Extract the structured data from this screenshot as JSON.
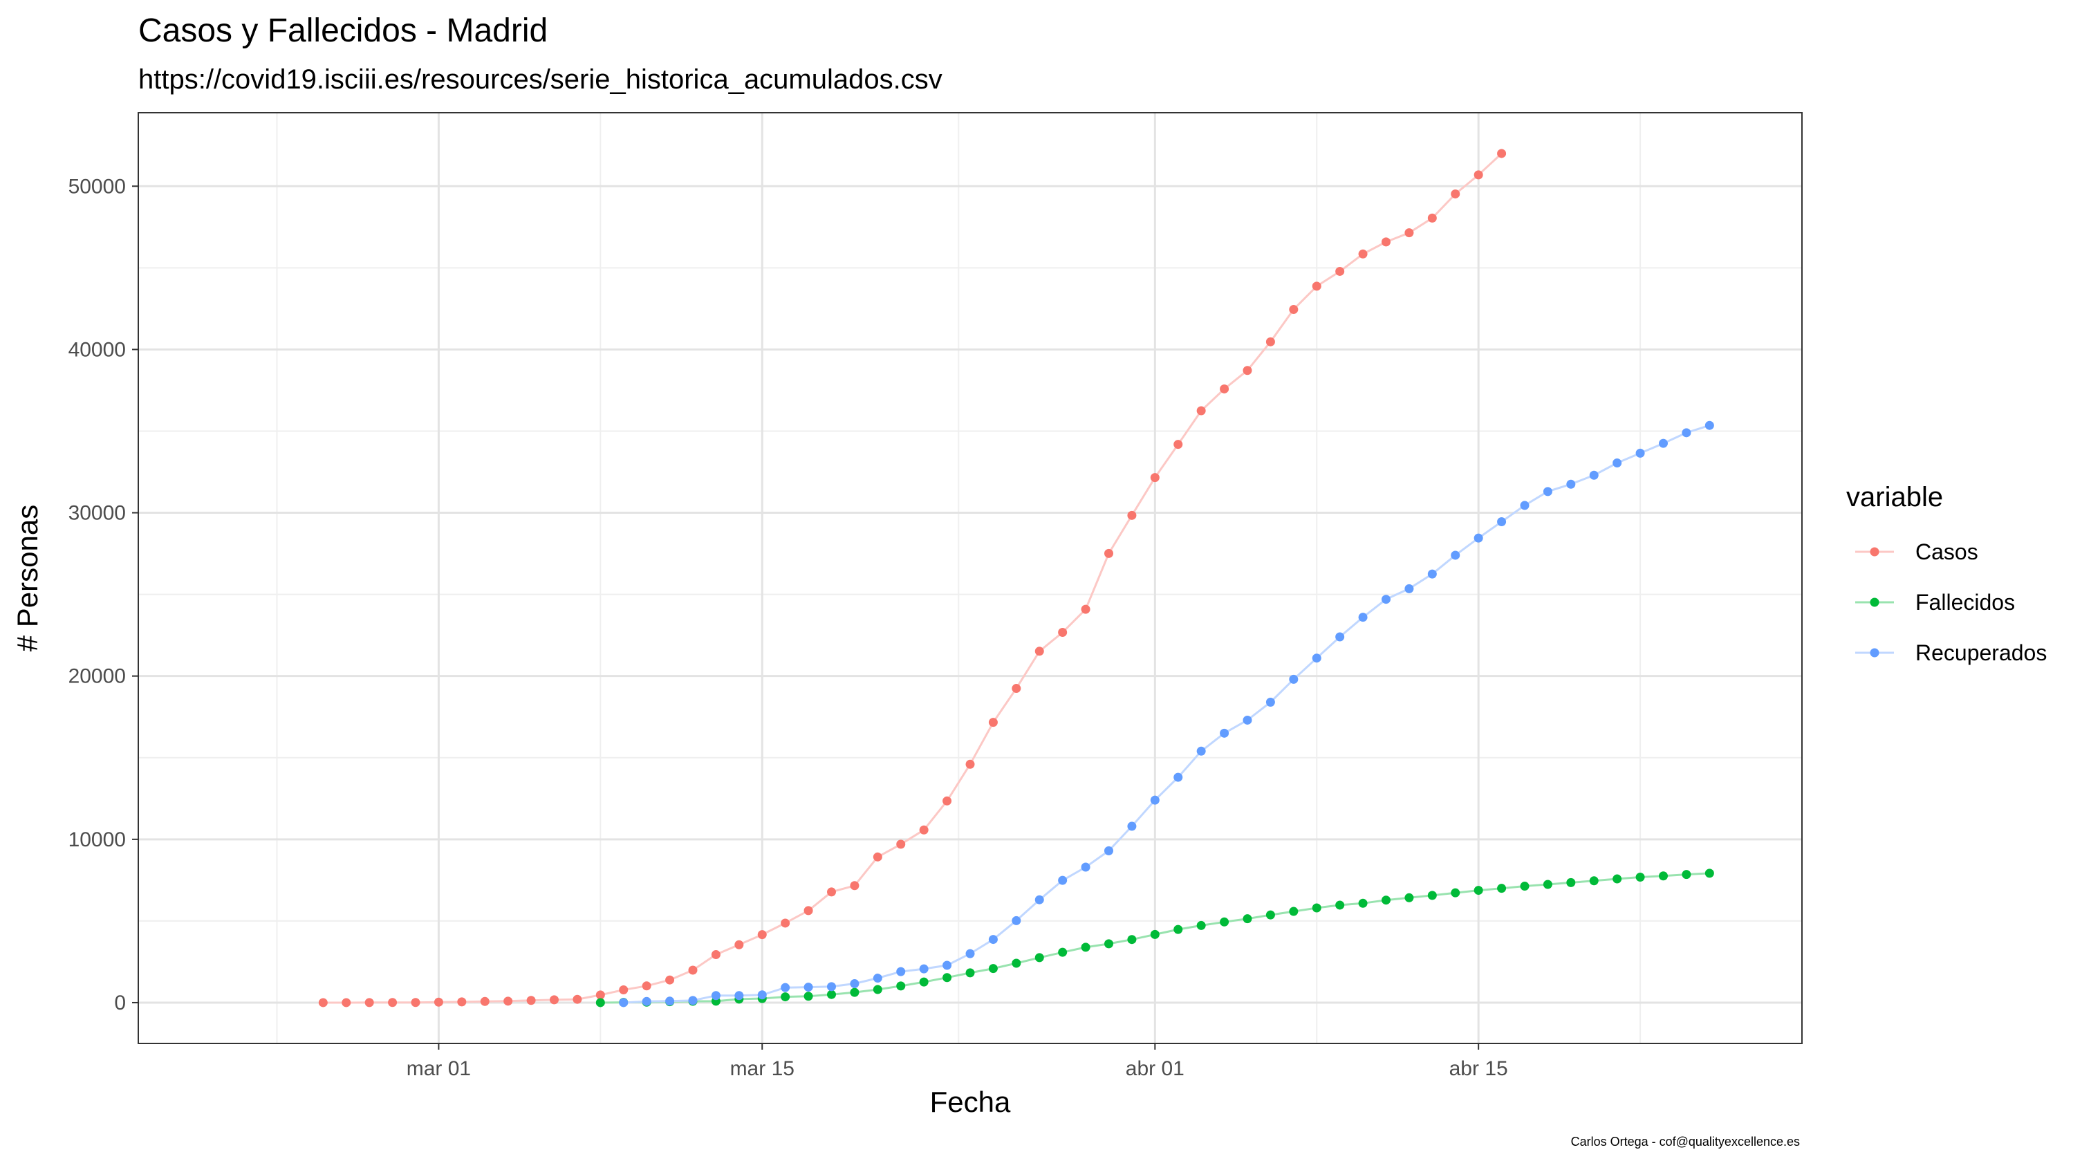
{
  "chart_data": {
    "type": "line",
    "title": "Casos y Fallecidos - Madrid",
    "subtitle": "https://covid19.isciii.es/resources/serie_historica_acumulados.csv",
    "xlabel": "Fecha",
    "ylabel": "# Personas",
    "caption": "Carlos Ortega - cof@qualityexcellence.es",
    "legend_title": "variable",
    "legend_position": "right",
    "grid": true,
    "xlim": [
      "2020-02-17",
      "2020-04-29"
    ],
    "ylim": [
      -2500,
      54500
    ],
    "x_ticks": [
      {
        "date": "2020-03-01",
        "label": "mar 01"
      },
      {
        "date": "2020-03-15",
        "label": "mar 15"
      },
      {
        "date": "2020-04-01",
        "label": "abr 01"
      },
      {
        "date": "2020-04-15",
        "label": "abr 15"
      }
    ],
    "y_ticks": [
      0,
      10000,
      20000,
      30000,
      40000,
      50000
    ],
    "series": [
      {
        "name": "Casos",
        "color": "#F8766D",
        "points": [
          [
            "2020-02-25",
            0
          ],
          [
            "2020-02-26",
            0
          ],
          [
            "2020-02-27",
            5
          ],
          [
            "2020-02-28",
            8
          ],
          [
            "2020-02-29",
            10
          ],
          [
            "2020-03-01",
            29
          ],
          [
            "2020-03-02",
            45
          ],
          [
            "2020-03-03",
            70
          ],
          [
            "2020-03-04",
            90
          ],
          [
            "2020-03-05",
            137
          ],
          [
            "2020-03-06",
            174
          ],
          [
            "2020-03-07",
            202
          ],
          [
            "2020-03-08",
            469
          ],
          [
            "2020-03-09",
            782
          ],
          [
            "2020-03-10",
            1024
          ],
          [
            "2020-03-11",
            1388
          ],
          [
            "2020-03-12",
            1990
          ],
          [
            "2020-03-13",
            2940
          ],
          [
            "2020-03-14",
            3544
          ],
          [
            "2020-03-15",
            4165
          ],
          [
            "2020-03-16",
            4871
          ],
          [
            "2020-03-17",
            5637
          ],
          [
            "2020-03-18",
            6777
          ],
          [
            "2020-03-19",
            7165
          ],
          [
            "2020-03-20",
            8921
          ],
          [
            "2020-03-21",
            9702
          ],
          [
            "2020-03-22",
            10575
          ],
          [
            "2020-03-23",
            12352
          ],
          [
            "2020-03-24",
            14597
          ],
          [
            "2020-03-25",
            17166
          ],
          [
            "2020-03-26",
            19243
          ],
          [
            "2020-03-27",
            21520
          ],
          [
            "2020-03-28",
            22677
          ],
          [
            "2020-03-29",
            24090
          ],
          [
            "2020-03-30",
            27509
          ],
          [
            "2020-03-31",
            29840
          ],
          [
            "2020-04-01",
            32155
          ],
          [
            "2020-04-02",
            34188
          ],
          [
            "2020-04-03",
            36249
          ],
          [
            "2020-04-04",
            37584
          ],
          [
            "2020-04-05",
            38716
          ],
          [
            "2020-04-06",
            40469
          ],
          [
            "2020-04-07",
            42450
          ],
          [
            "2020-04-08",
            43877
          ],
          [
            "2020-04-09",
            44783
          ],
          [
            "2020-04-10",
            45849
          ],
          [
            "2020-04-11",
            46587
          ],
          [
            "2020-04-12",
            47146
          ],
          [
            "2020-04-13",
            48048
          ],
          [
            "2020-04-14",
            49526
          ],
          [
            "2020-04-15",
            50694
          ],
          [
            "2020-04-16",
            52003
          ]
        ]
      },
      {
        "name": "Fallecidos",
        "color": "#00BA38",
        "points": [
          [
            "2020-03-08",
            0
          ],
          [
            "2020-03-09",
            16
          ],
          [
            "2020-03-10",
            31
          ],
          [
            "2020-03-11",
            56
          ],
          [
            "2020-03-12",
            81
          ],
          [
            "2020-03-13",
            86
          ],
          [
            "2020-03-14",
            213
          ],
          [
            "2020-03-15",
            253
          ],
          [
            "2020-03-16",
            355
          ],
          [
            "2020-03-17",
            390
          ],
          [
            "2020-03-18",
            498
          ],
          [
            "2020-03-19",
            628
          ],
          [
            "2020-03-20",
            804
          ],
          [
            "2020-03-21",
            1021
          ],
          [
            "2020-03-22",
            1263
          ],
          [
            "2020-03-23",
            1535
          ],
          [
            "2020-03-24",
            1825
          ],
          [
            "2020-03-25",
            2090
          ],
          [
            "2020-03-26",
            2412
          ],
          [
            "2020-03-27",
            2757
          ],
          [
            "2020-03-28",
            3082
          ],
          [
            "2020-03-29",
            3392
          ],
          [
            "2020-03-30",
            3603
          ],
          [
            "2020-03-31",
            3865
          ],
          [
            "2020-04-01",
            4175
          ],
          [
            "2020-04-02",
            4483
          ],
          [
            "2020-04-03",
            4723
          ],
          [
            "2020-04-04",
            4941
          ],
          [
            "2020-04-05",
            5136
          ],
          [
            "2020-04-06",
            5371
          ],
          [
            "2020-04-07",
            5586
          ],
          [
            "2020-04-08",
            5800
          ],
          [
            "2020-04-09",
            5972
          ],
          [
            "2020-04-10",
            6084
          ],
          [
            "2020-04-11",
            6278
          ],
          [
            "2020-04-12",
            6423
          ],
          [
            "2020-04-13",
            6568
          ],
          [
            "2020-04-14",
            6724
          ],
          [
            "2020-04-15",
            6877
          ],
          [
            "2020-04-16",
            7000
          ],
          [
            "2020-04-17",
            7132
          ],
          [
            "2020-04-18",
            7239
          ],
          [
            "2020-04-19",
            7351
          ],
          [
            "2020-04-20",
            7460
          ],
          [
            "2020-04-21",
            7577
          ],
          [
            "2020-04-22",
            7684
          ],
          [
            "2020-04-23",
            7758
          ],
          [
            "2020-04-24",
            7848
          ],
          [
            "2020-04-25",
            7922
          ]
        ]
      },
      {
        "name": "Recuperados",
        "color": "#619CFF",
        "points": [
          [
            "2020-03-09",
            0
          ],
          [
            "2020-03-10",
            70
          ],
          [
            "2020-03-11",
            92
          ],
          [
            "2020-03-12",
            130
          ],
          [
            "2020-03-13",
            433
          ],
          [
            "2020-03-14",
            433
          ],
          [
            "2020-03-15",
            474
          ],
          [
            "2020-03-16",
            923
          ],
          [
            "2020-03-17",
            948
          ],
          [
            "2020-03-18",
            980
          ],
          [
            "2020-03-19",
            1161
          ],
          [
            "2020-03-20",
            1500
          ],
          [
            "2020-03-21",
            1900
          ],
          [
            "2020-03-22",
            2068
          ],
          [
            "2020-03-23",
            2284
          ],
          [
            "2020-03-24",
            3000
          ],
          [
            "2020-03-25",
            3870
          ],
          [
            "2020-03-26",
            5020
          ],
          [
            "2020-03-27",
            6300
          ],
          [
            "2020-03-28",
            7487
          ],
          [
            "2020-03-29",
            8300
          ],
          [
            "2020-03-30",
            9300
          ],
          [
            "2020-03-31",
            10800
          ],
          [
            "2020-04-01",
            12400
          ],
          [
            "2020-04-02",
            13800
          ],
          [
            "2020-04-03",
            15400
          ],
          [
            "2020-04-04",
            16500
          ],
          [
            "2020-04-05",
            17300
          ],
          [
            "2020-04-06",
            18400
          ],
          [
            "2020-04-07",
            19800
          ],
          [
            "2020-04-08",
            21100
          ],
          [
            "2020-04-09",
            22400
          ],
          [
            "2020-04-10",
            23600
          ],
          [
            "2020-04-11",
            24700
          ],
          [
            "2020-04-12",
            25350
          ],
          [
            "2020-04-13",
            26250
          ],
          [
            "2020-04-14",
            27400
          ],
          [
            "2020-04-15",
            28450
          ],
          [
            "2020-04-16",
            29450
          ],
          [
            "2020-04-17",
            30450
          ],
          [
            "2020-04-18",
            31300
          ],
          [
            "2020-04-19",
            31750
          ],
          [
            "2020-04-20",
            32300
          ],
          [
            "2020-04-21",
            33050
          ],
          [
            "2020-04-22",
            33650
          ],
          [
            "2020-04-23",
            34250
          ],
          [
            "2020-04-24",
            34900
          ],
          [
            "2020-04-25",
            35350
          ]
        ]
      }
    ]
  }
}
